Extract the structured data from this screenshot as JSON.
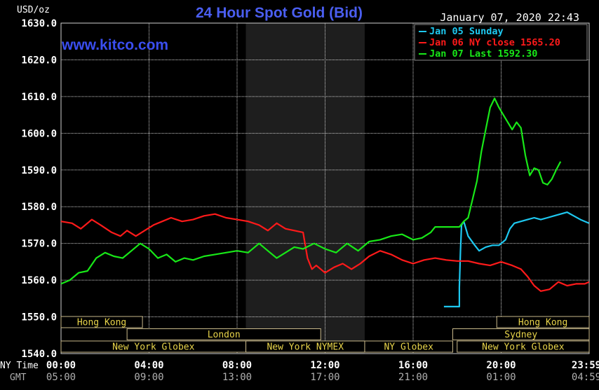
{
  "chart_data": {
    "type": "line",
    "title": "24 Hour Spot Gold (Bid)",
    "ylabel": "USD/oz",
    "timestamp": "January 07, 2020 22:43",
    "watermark": "www.kitco.com",
    "ylim": [
      1540,
      1630
    ],
    "yticks": [
      "1630.0",
      "1620.0",
      "1610.0",
      "1600.0",
      "1590.0",
      "1580.0",
      "1570.0",
      "1560.0",
      "1550.0",
      "1540.0"
    ],
    "xlim": [
      0,
      24
    ],
    "x_row_labels": {
      "ny": "NY Time",
      "gmt": "GMT"
    },
    "x_ticks_ny": [
      "00:00",
      "04:00",
      "08:00",
      "12:00",
      "16:00",
      "20:00",
      "23:59"
    ],
    "x_ticks_gmt": [
      "05:00",
      "09:00",
      "13:00",
      "17:00",
      "21:00",
      "01:00",
      "04:59"
    ],
    "shaded_range": [
      8.4,
      13.8
    ],
    "colors": {
      "grid": "#d0d0d0",
      "axis_text": "#ffffff",
      "title": "#4a5ef0",
      "watermark": "#3a4ef0",
      "shade": "#1e1e1e",
      "legend_border": "#888888"
    },
    "legend": [
      {
        "label": "Jan 05 Sunday",
        "color": "#1ec8f0"
      },
      {
        "label": "Jan 06 NY close 1565.20",
        "color": "#ff1a1a"
      },
      {
        "label": "Jan 07 Last 1592.30",
        "color": "#18e818"
      }
    ],
    "series": [
      {
        "color": "#1ec8f0",
        "x": [
          17.4,
          18.1,
          18.1,
          18.15,
          18.2,
          18.3,
          18.5,
          18.8,
          19.0,
          19.3,
          19.6,
          19.9,
          20.2,
          20.4,
          20.6,
          20.9,
          21.2,
          21.5,
          21.8,
          22.1,
          22.4,
          22.7,
          23.0,
          23.3,
          23.6,
          23.99
        ],
        "y": [
          1552.8,
          1552.8,
          1558.0,
          1568.0,
          1575.0,
          1576.0,
          1572.0,
          1569.5,
          1568.0,
          1569.0,
          1569.5,
          1569.5,
          1571.0,
          1574.0,
          1575.5,
          1576.0,
          1576.5,
          1577.0,
          1576.5,
          1577.0,
          1577.5,
          1578.0,
          1578.5,
          1577.5,
          1576.5,
          1575.5
        ]
      },
      {
        "color": "#ff1a1a",
        "x": [
          0,
          0.5,
          0.9,
          1.4,
          1.8,
          2.3,
          2.7,
          3.0,
          3.4,
          3.8,
          4.2,
          4.6,
          5.0,
          5.5,
          6.0,
          6.5,
          7.0,
          7.5,
          8.0,
          8.5,
          9.0,
          9.4,
          9.8,
          10.2,
          10.6,
          11.0,
          11.2,
          11.4,
          11.6,
          12.0,
          12.4,
          12.8,
          13.2,
          13.6,
          14.0,
          14.5,
          15.0,
          15.5,
          16.0,
          16.5,
          17.0,
          17.5,
          18.0,
          18.5,
          19.0,
          19.5,
          20.0,
          20.5,
          20.9,
          21.2,
          21.5,
          21.8,
          22.2,
          22.6,
          23.0,
          23.4,
          23.8,
          23.99
        ],
        "y": [
          1576.0,
          1575.5,
          1574.0,
          1576.5,
          1575.0,
          1573.0,
          1572.0,
          1573.5,
          1572.0,
          1573.5,
          1575.0,
          1576.0,
          1577.0,
          1576.0,
          1576.5,
          1577.5,
          1578.0,
          1577.0,
          1576.5,
          1576.0,
          1575.0,
          1573.5,
          1575.5,
          1574.0,
          1573.5,
          1573.0,
          1566.0,
          1563.0,
          1564.0,
          1562.0,
          1563.5,
          1564.5,
          1563.0,
          1564.5,
          1566.5,
          1568.0,
          1567.0,
          1565.5,
          1564.5,
          1565.5,
          1566.0,
          1565.5,
          1565.2,
          1565.2,
          1564.5,
          1564.0,
          1565.0,
          1564.0,
          1563.0,
          1561.0,
          1558.5,
          1557.0,
          1557.5,
          1559.5,
          1558.5,
          1559.0,
          1559.0,
          1559.5
        ]
      },
      {
        "color": "#18e818",
        "x": [
          0,
          0.4,
          0.8,
          1.2,
          1.6,
          2.0,
          2.4,
          2.8,
          3.2,
          3.6,
          4.0,
          4.4,
          4.8,
          5.2,
          5.6,
          6.0,
          6.5,
          7.0,
          7.5,
          8.0,
          8.5,
          9.0,
          9.4,
          9.8,
          10.2,
          10.6,
          11.0,
          11.5,
          12.0,
          12.5,
          13.0,
          13.5,
          14.0,
          14.5,
          15.0,
          15.5,
          16.0,
          16.4,
          16.8,
          17.0,
          17.4,
          17.8,
          18.1,
          18.3,
          18.5,
          18.7,
          18.9,
          19.1,
          19.3,
          19.5,
          19.7,
          19.9,
          20.1,
          20.3,
          20.5,
          20.7,
          20.9,
          21.1,
          21.3,
          21.5,
          21.7,
          21.9,
          22.1,
          22.3,
          22.5,
          22.7
        ],
        "y": [
          1559.0,
          1560.0,
          1562.0,
          1562.5,
          1566.0,
          1567.5,
          1566.5,
          1566.0,
          1568.0,
          1570.0,
          1568.5,
          1566.0,
          1567.0,
          1565.0,
          1566.0,
          1565.5,
          1566.5,
          1567.0,
          1567.5,
          1568.0,
          1567.5,
          1570.0,
          1568.0,
          1566.0,
          1567.5,
          1569.0,
          1568.5,
          1570.0,
          1568.5,
          1567.5,
          1570.0,
          1568.0,
          1570.5,
          1571.0,
          1572.0,
          1572.5,
          1571.0,
          1571.5,
          1573.0,
          1574.5,
          1574.5,
          1574.5,
          1574.5,
          1576.0,
          1577.0,
          1582.0,
          1587.0,
          1595.0,
          1601.0,
          1607.0,
          1609.5,
          1607.0,
          1605.0,
          1603.0,
          1601.0,
          1603.0,
          1601.5,
          1594.0,
          1588.5,
          1590.5,
          1590.0,
          1586.5,
          1586.0,
          1587.5,
          1590.0,
          1592.3
        ]
      }
    ],
    "sessions": [
      {
        "label": "Hong Kong",
        "row": 0,
        "start": 0,
        "end": 3.7
      },
      {
        "label": "London",
        "row": 1,
        "start": 3.0,
        "end": 11.8
      },
      {
        "label": "New York Globex",
        "row": 2,
        "start": 0,
        "end": 8.4
      },
      {
        "label": "New York NYMEX",
        "row": 2,
        "start": 8.4,
        "end": 13.8
      },
      {
        "label": "NY Globex",
        "row": 2,
        "start": 13.8,
        "end": 17.8
      },
      {
        "label": "Hong Kong",
        "row": 0,
        "start": 19.8,
        "end": 24
      },
      {
        "label": "Sydney",
        "row": 1,
        "start": 17.8,
        "end": 24
      },
      {
        "label": "New York Globex",
        "row": 2,
        "start": 18.0,
        "end": 24
      }
    ]
  }
}
